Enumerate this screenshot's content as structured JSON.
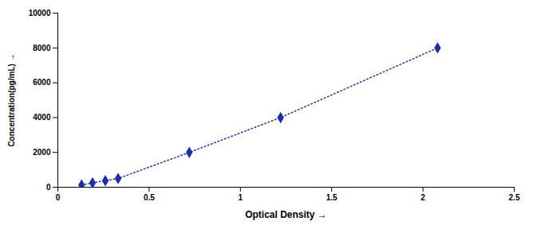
{
  "chart_data": {
    "type": "line",
    "x": [
      0.13,
      0.19,
      0.26,
      0.33,
      0.72,
      1.22,
      2.08
    ],
    "values": [
      125,
      250,
      375,
      500,
      2000,
      4000,
      8000
    ],
    "color": "#1c2eb0",
    "marker": "diamond",
    "line_style": "dotted",
    "xlabel": "Optical Density",
    "ylabel": "Concentration(pg/mL)",
    "xlim": [
      0,
      2.5
    ],
    "ylim": [
      0,
      10000
    ],
    "xticks": [
      0,
      0.5,
      1,
      1.5,
      2,
      2.5
    ],
    "yticks": [
      0,
      2000,
      4000,
      6000,
      8000,
      10000
    ],
    "grid": false
  }
}
